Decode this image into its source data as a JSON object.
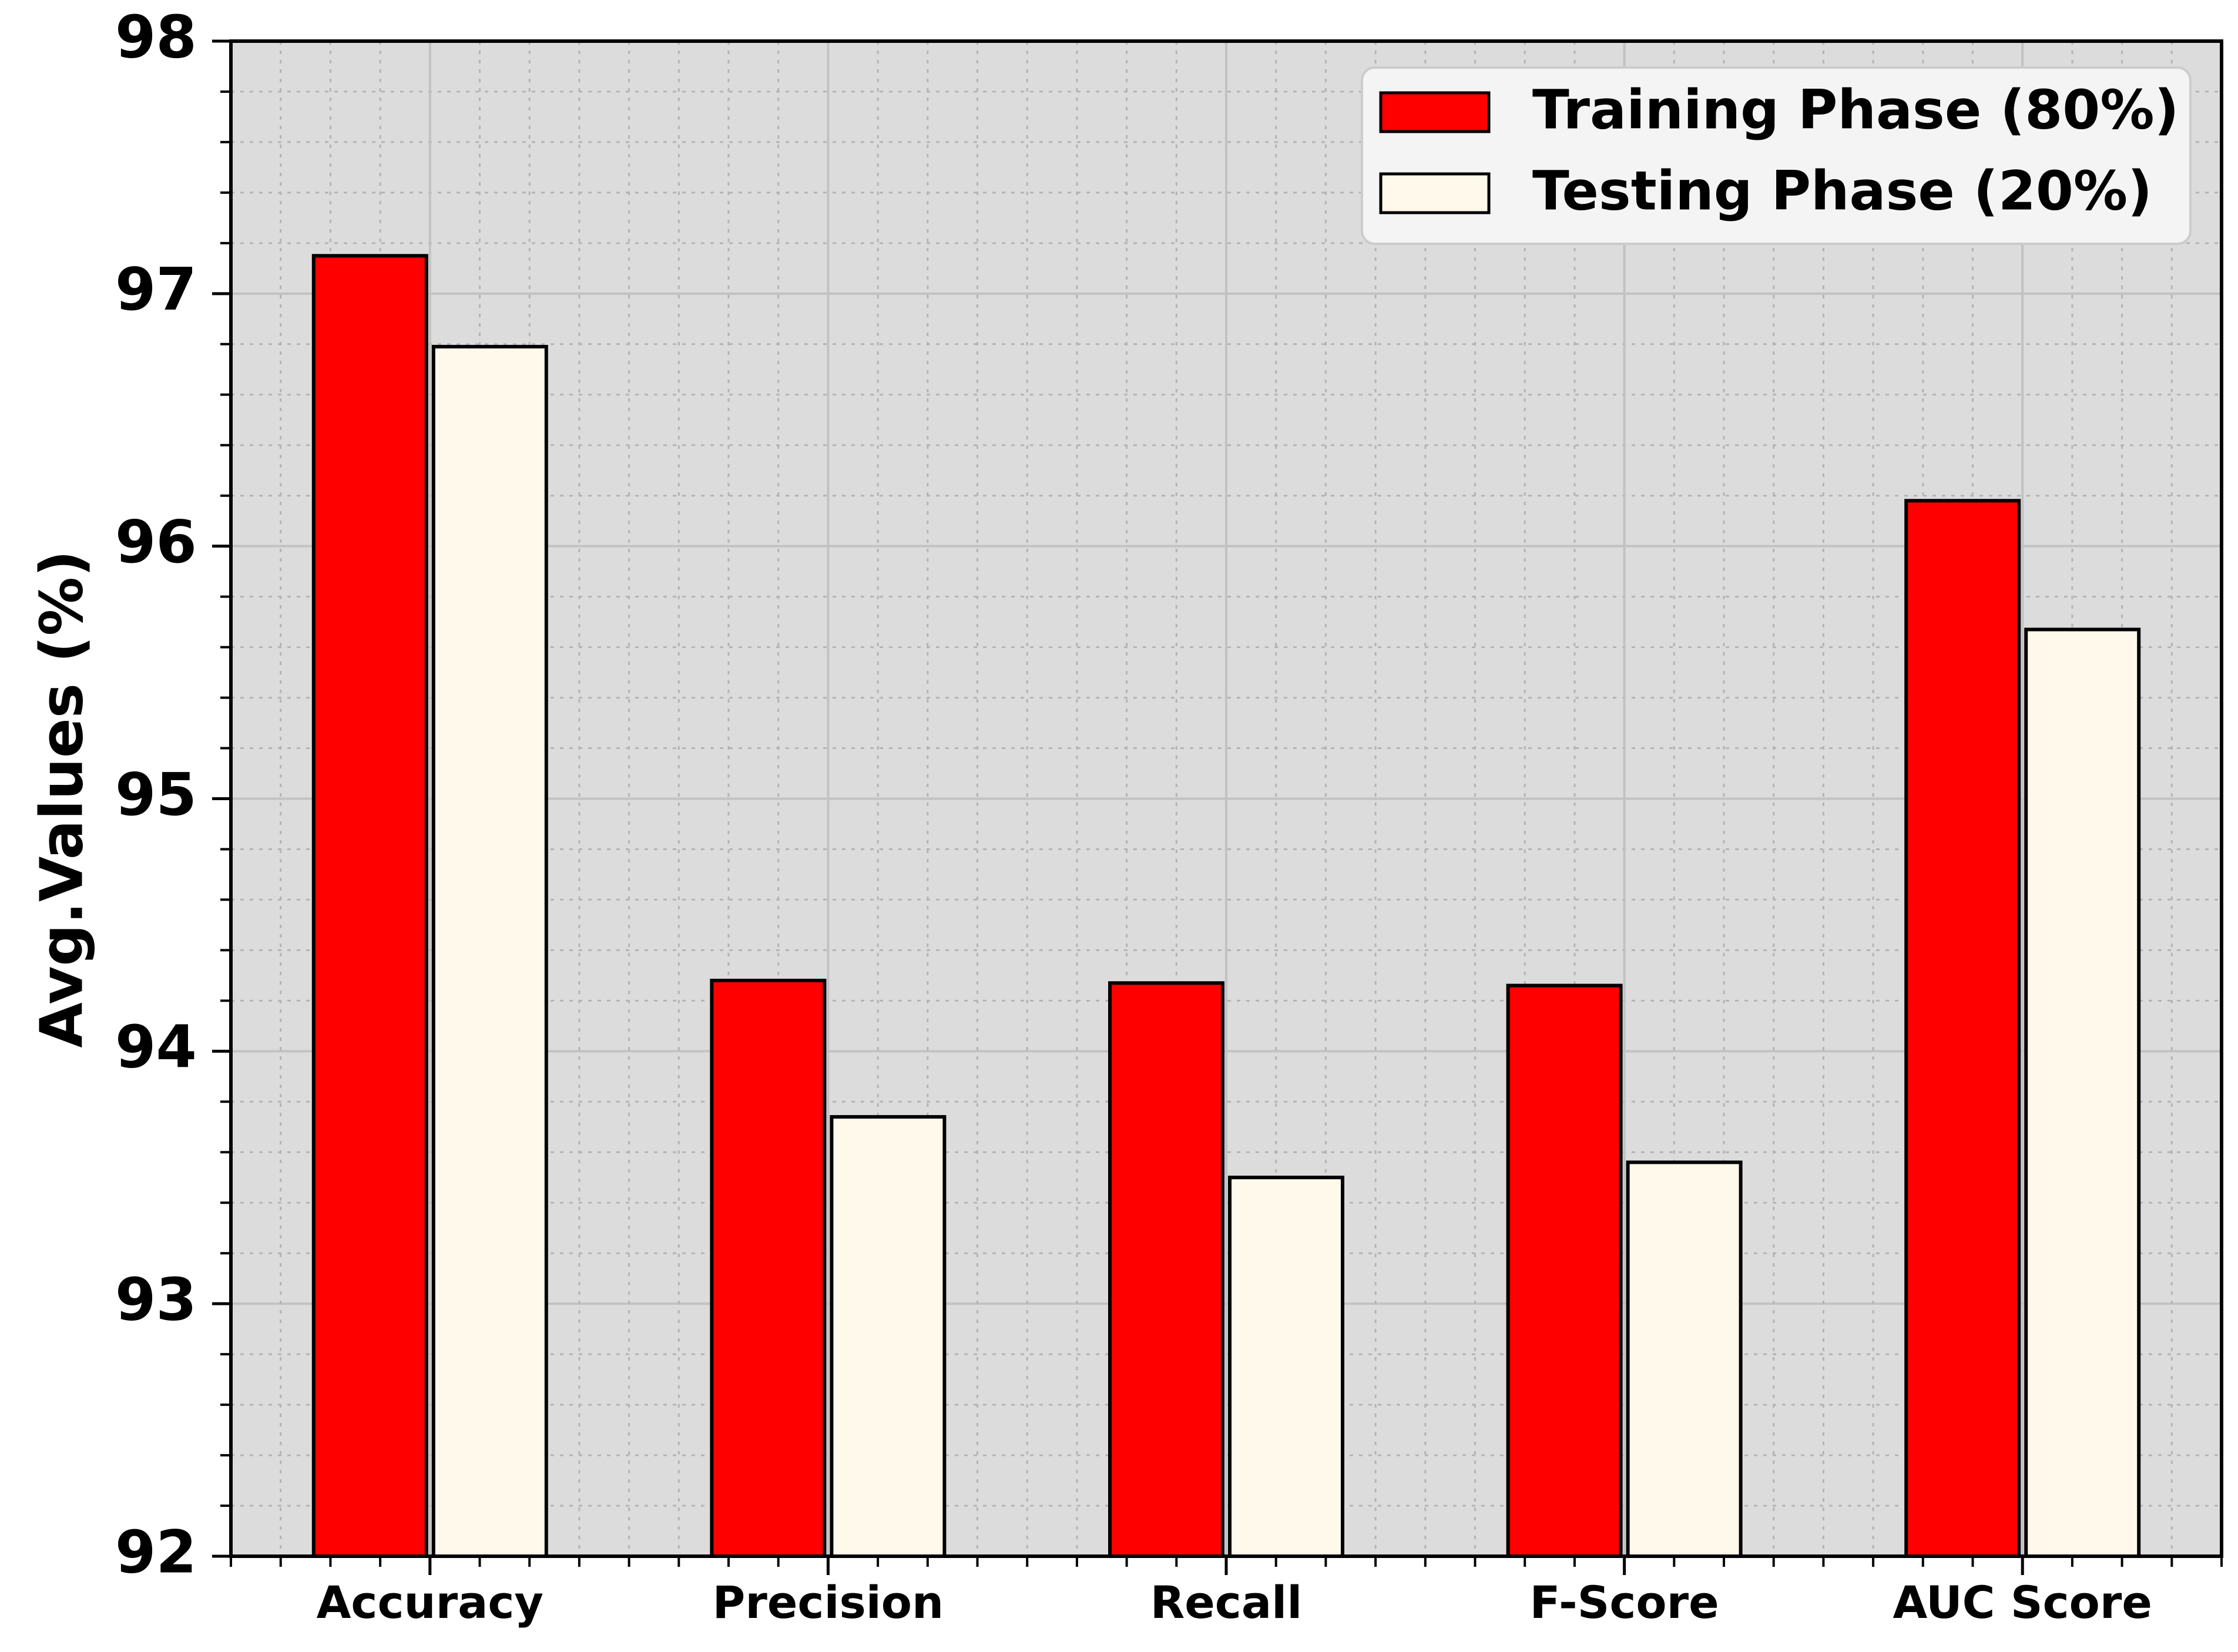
{
  "chart_data": {
    "type": "bar",
    "title": "",
    "xlabel": "",
    "ylabel": "Avg.Values (%)",
    "ylim": [
      92,
      98
    ],
    "yticks": [
      "92",
      "93",
      "94",
      "95",
      "96",
      "97",
      "98"
    ],
    "categories": [
      "Accuracy",
      "Precision",
      "Recall",
      "F-Score",
      "AUC Score"
    ],
    "series": [
      {
        "name": "Training Phase (80%)",
        "color": "#ff0000",
        "values": [
          97.15,
          94.28,
          94.27,
          94.26,
          96.18
        ]
      },
      {
        "name": "Testing Phase (20%)",
        "color": "#fff9ec",
        "values": [
          96.79,
          93.74,
          93.5,
          93.56,
          95.67
        ]
      }
    ],
    "grid": true,
    "minor_grid": true,
    "legend_position": "top-right",
    "plot_background": "#dcdcdc",
    "bar_edge_color": "#000000"
  }
}
